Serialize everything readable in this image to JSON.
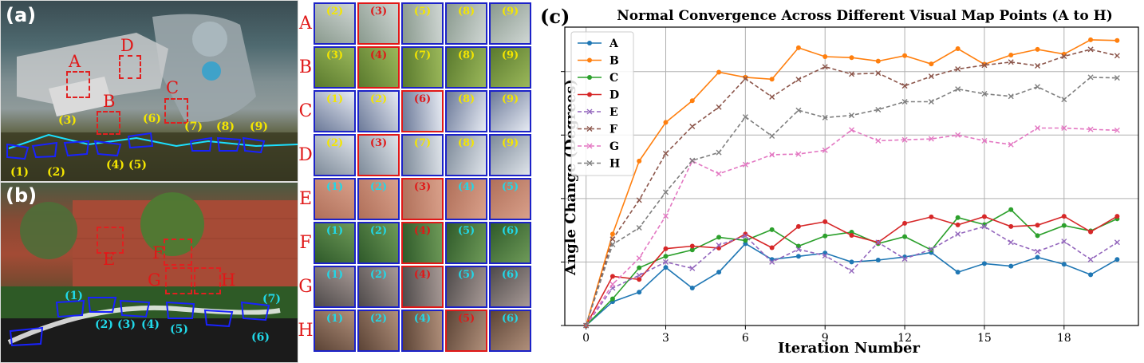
{
  "panel_a": {
    "tag": "(a)",
    "regions": [
      "A",
      "B",
      "C",
      "D"
    ],
    "camera_labels": [
      "(1)",
      "(2)",
      "(3)",
      "(4)",
      "(5)",
      "(6)",
      "(7)",
      "(8)",
      "(9)"
    ]
  },
  "panel_b": {
    "tag": "(b)",
    "regions": [
      "E",
      "F",
      "G",
      "H"
    ],
    "camera_labels": [
      "(1)",
      "(2)",
      "(3)",
      "(4)",
      "(5)",
      "(6)",
      "(7)"
    ]
  },
  "patch_grid": {
    "rows": [
      {
        "letter": "A",
        "labels": [
          "(2)",
          "(3)",
          "(5)",
          "(8)",
          "(9)"
        ],
        "selected": 1
      },
      {
        "letter": "B",
        "labels": [
          "(3)",
          "(4)",
          "(7)",
          "(8)",
          "(9)"
        ],
        "selected": 1
      },
      {
        "letter": "C",
        "labels": [
          "(1)",
          "(2)",
          "(6)",
          "(8)",
          "(9)"
        ],
        "selected": 2
      },
      {
        "letter": "D",
        "labels": [
          "(2)",
          "(3)",
          "(7)",
          "(8)",
          "(9)"
        ],
        "selected": 1
      },
      {
        "letter": "E",
        "labels": [
          "(1)",
          "(2)",
          "(3)",
          "(4)",
          "(5)"
        ],
        "selected": 2
      },
      {
        "letter": "F",
        "labels": [
          "(1)",
          "(2)",
          "(4)",
          "(5)",
          "(6)"
        ],
        "selected": 2
      },
      {
        "letter": "G",
        "labels": [
          "(1)",
          "(2)",
          "(4)",
          "(5)",
          "(6)"
        ],
        "selected": 2
      },
      {
        "letter": "H",
        "labels": [
          "(1)",
          "(2)",
          "(4)",
          "(5)",
          "(6)"
        ],
        "selected": 3
      }
    ]
  },
  "panel_c": {
    "tag": "(c)"
  },
  "chart_data": {
    "type": "line",
    "title": "Normal Convergence Across Different Visual Map Points (A to H)",
    "xlabel": "Iteration Number",
    "ylabel": "Angle Change (Degrees)",
    "xlim": [
      -0.8,
      20.8
    ],
    "ylim": [
      0,
      9.4
    ],
    "xticks": [
      0,
      3,
      6,
      9,
      12,
      15,
      18
    ],
    "yticks": [
      0,
      2,
      4,
      6,
      8
    ],
    "grid": true,
    "legend_position": "top-left",
    "x": [
      0,
      1,
      2,
      3,
      4,
      5,
      6,
      7,
      8,
      9,
      10,
      11,
      12,
      13,
      14,
      15,
      16,
      17,
      18,
      19,
      20
    ],
    "series": [
      {
        "name": "A",
        "color": "#1f77b4",
        "style": "solid",
        "marker": "circle",
        "values": [
          0,
          0.75,
          1.05,
          1.83,
          1.18,
          1.68,
          2.58,
          2.08,
          2.18,
          2.28,
          2.0,
          2.06,
          2.16,
          2.3,
          1.68,
          1.95,
          1.87,
          2.15,
          1.93,
          1.6,
          2.08
        ]
      },
      {
        "name": "B",
        "color": "#ff7f0e",
        "style": "solid",
        "marker": "circle",
        "values": [
          0,
          2.88,
          5.18,
          6.4,
          7.08,
          7.98,
          7.82,
          7.76,
          8.75,
          8.47,
          8.44,
          8.33,
          8.5,
          8.24,
          8.72,
          8.23,
          8.52,
          8.7,
          8.55,
          9.0,
          8.98
        ]
      },
      {
        "name": "C",
        "color": "#2ca02c",
        "style": "solid",
        "marker": "circle",
        "values": [
          0,
          0.84,
          1.82,
          2.18,
          2.38,
          2.78,
          2.68,
          3.02,
          2.5,
          2.82,
          2.94,
          2.58,
          2.8,
          2.38,
          3.4,
          3.18,
          3.65,
          2.83,
          3.15,
          2.98,
          3.36
        ]
      },
      {
        "name": "D",
        "color": "#d62728",
        "style": "solid",
        "marker": "circle",
        "values": [
          0,
          1.55,
          1.45,
          2.42,
          2.5,
          2.44,
          2.88,
          2.45,
          3.12,
          3.27,
          2.84,
          2.62,
          3.22,
          3.42,
          3.17,
          3.43,
          3.12,
          3.16,
          3.44,
          2.95,
          3.44
        ]
      },
      {
        "name": "E",
        "color": "#9467bd",
        "style": "dashed",
        "marker": "x",
        "values": [
          0,
          1.18,
          1.58,
          2.0,
          1.8,
          2.53,
          2.82,
          2.0,
          2.4,
          2.2,
          1.72,
          2.62,
          2.1,
          2.4,
          2.88,
          3.12,
          2.62,
          2.33,
          2.65,
          2.08,
          2.62
        ]
      },
      {
        "name": "F",
        "color": "#8c564b",
        "style": "dashed",
        "marker": "x",
        "values": [
          0,
          2.72,
          3.95,
          5.42,
          6.27,
          6.88,
          7.78,
          7.2,
          7.75,
          8.15,
          7.92,
          7.95,
          7.55,
          7.85,
          8.08,
          8.2,
          8.3,
          8.18,
          8.48,
          8.7,
          8.5
        ]
      },
      {
        "name": "G",
        "color": "#e377c2",
        "style": "dashed",
        "marker": "x",
        "values": [
          0,
          1.3,
          2.12,
          3.45,
          5.18,
          4.78,
          5.07,
          5.38,
          5.4,
          5.52,
          6.16,
          5.82,
          5.85,
          5.88,
          6.0,
          5.82,
          5.7,
          6.22,
          6.22,
          6.18,
          6.15
        ]
      },
      {
        "name": "H",
        "color": "#7f7f7f",
        "style": "dashed",
        "marker": "x",
        "values": [
          0,
          2.55,
          3.08,
          4.2,
          5.2,
          5.45,
          6.57,
          5.97,
          6.78,
          6.55,
          6.62,
          6.8,
          7.05,
          7.05,
          7.45,
          7.3,
          7.22,
          7.52,
          7.12,
          7.82,
          7.8
        ]
      }
    ]
  }
}
